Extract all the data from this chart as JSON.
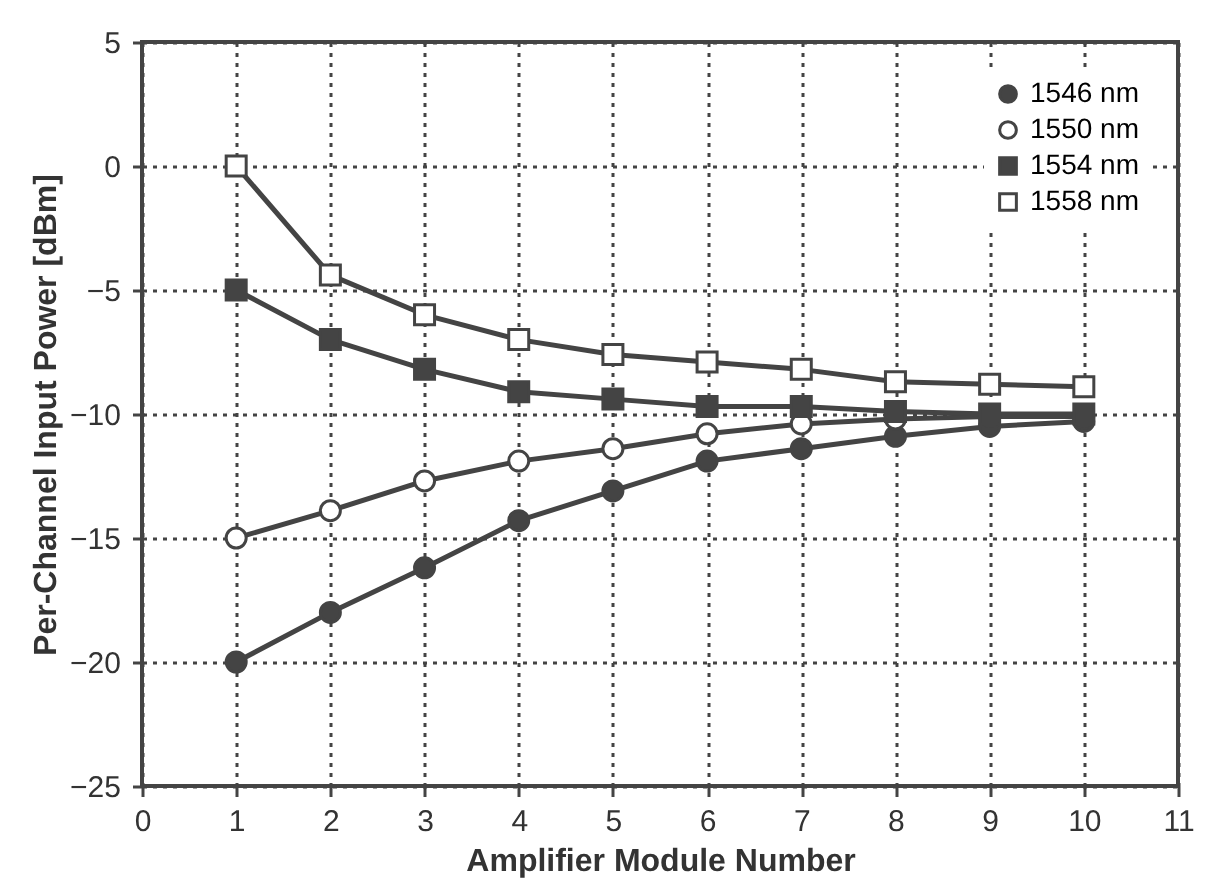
{
  "chart_data": {
    "type": "line",
    "xlabel": "Amplifier Module Number",
    "ylabel": "Per-Channel Input Power [dBm]",
    "x": [
      1,
      2,
      3,
      4,
      5,
      6,
      7,
      8,
      9,
      10
    ],
    "series": [
      {
        "name": "1546 nm",
        "color": "#444444",
        "marker": "circle",
        "values": [
          -20,
          -18,
          -16.2,
          -14.3,
          -13.1,
          -11.9,
          -11.4,
          -10.9,
          -10.5,
          -10.3
        ]
      },
      {
        "name": "1550 nm",
        "color": "#ffffff",
        "marker": "circle",
        "values": [
          -15,
          -13.9,
          -12.7,
          -11.9,
          -11.4,
          -10.8,
          -10.4,
          -10.2,
          -10.1,
          -10.1
        ]
      },
      {
        "name": "1554 nm",
        "color": "#444444",
        "marker": "square",
        "values": [
          -5,
          -7,
          -8.2,
          -9.1,
          -9.4,
          -9.7,
          -9.7,
          -9.9,
          -10,
          -10
        ]
      },
      {
        "name": "1558 nm",
        "color": "#ffffff",
        "marker": "square",
        "values": [
          0,
          -4.4,
          -6,
          -7,
          -7.6,
          -7.9,
          -8.2,
          -8.7,
          -8.8,
          -8.9
        ]
      }
    ],
    "xlim": [
      0,
      11
    ],
    "xticks": [
      0,
      1,
      2,
      3,
      4,
      5,
      6,
      7,
      8,
      9,
      10,
      11
    ],
    "ylim": [
      -25,
      5
    ],
    "yticks": [
      -25,
      -20,
      -15,
      -10,
      -5,
      0,
      5
    ],
    "grid": true,
    "legend": "top right",
    "line_style": "solid"
  }
}
